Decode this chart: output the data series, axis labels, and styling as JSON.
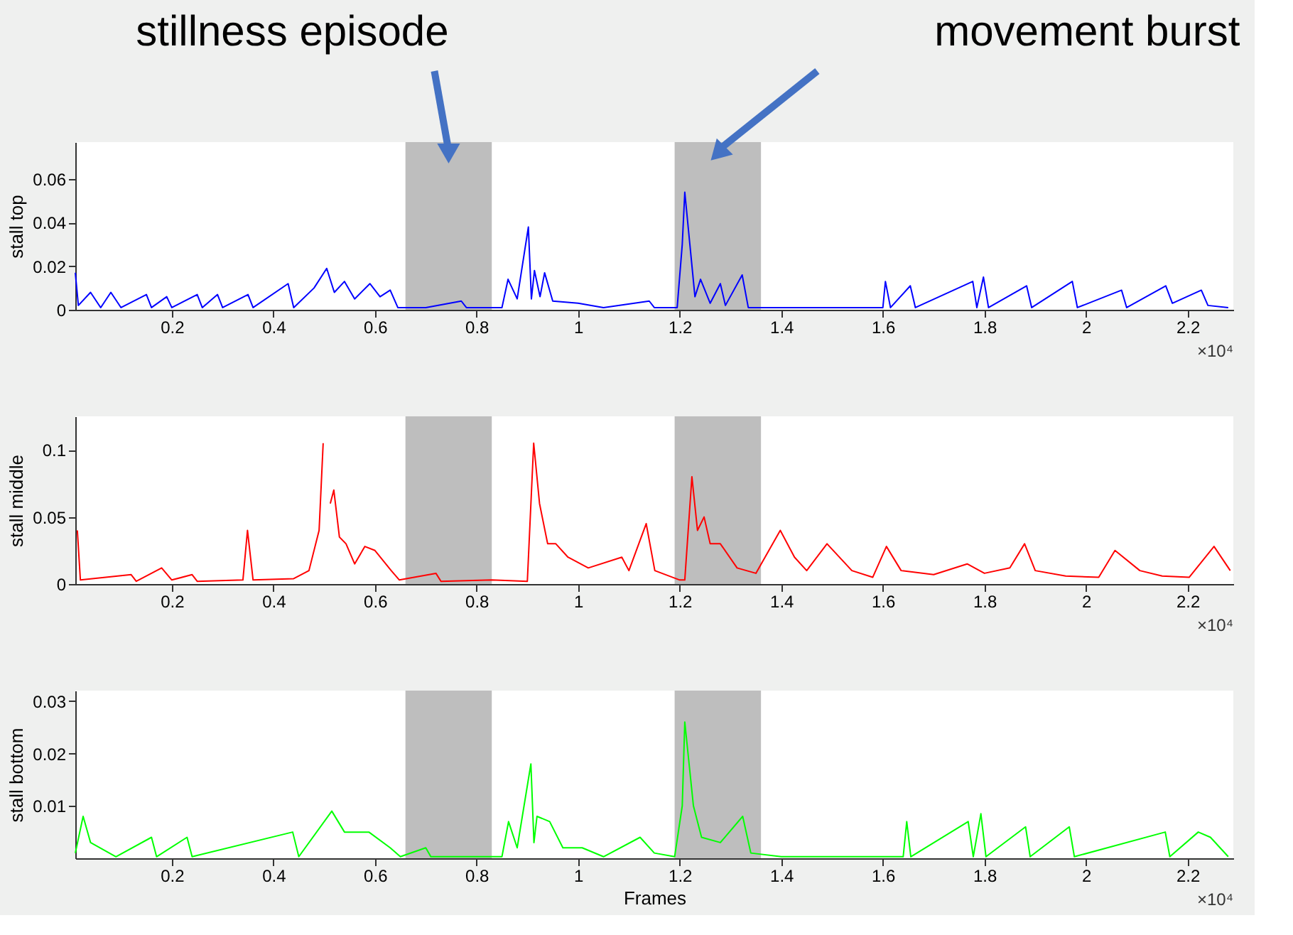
{
  "chart_data": [
    {
      "type": "line",
      "ylabel": "stall top",
      "x": [
        0.01,
        0.016,
        0.04,
        0.06,
        0.08,
        0.1,
        0.15,
        0.16,
        0.19,
        0.2,
        0.25,
        0.26,
        0.29,
        0.3,
        0.35,
        0.36,
        0.429,
        0.44,
        0.48,
        0.505,
        0.52,
        0.54,
        0.56,
        0.59,
        0.61,
        0.63,
        0.645,
        0.7,
        0.77,
        0.78,
        0.85,
        0.862,
        0.88,
        0.902,
        0.908,
        0.914,
        0.925,
        0.934,
        0.95,
        1.0,
        1.05,
        1.14,
        1.15,
        1.195,
        1.205,
        1.21,
        1.22,
        1.23,
        1.241,
        1.26,
        1.28,
        1.29,
        1.323,
        1.335,
        1.4,
        1.6,
        1.605,
        1.615,
        1.654,
        1.664,
        1.777,
        1.785,
        1.798,
        1.808,
        1.883,
        1.893,
        1.973,
        1.983,
        2.07,
        2.08,
        2.157,
        2.17,
        2.227,
        2.24,
        2.28
      ],
      "series": [
        {
          "color": "#0000ff",
          "values": [
            0.017,
            0.002,
            0.008,
            0.001,
            0.008,
            0.001,
            0.007,
            0.001,
            0.006,
            0.001,
            0.007,
            0.001,
            0.007,
            0.001,
            0.007,
            0.001,
            0.012,
            0.001,
            0.01,
            0.019,
            0.008,
            0.013,
            0.005,
            0.012,
            0.006,
            0.009,
            0.001,
            0.001,
            0.004,
            0.001,
            0.001,
            0.014,
            0.005,
            0.038,
            0.005,
            0.018,
            0.006,
            0.017,
            0.004,
            0.003,
            0.001,
            0.004,
            0.001,
            0.001,
            0.03,
            0.054,
            0.03,
            0.006,
            0.014,
            0.003,
            0.012,
            0.002,
            0.016,
            0.001,
            0.001,
            0.001,
            0.013,
            0.001,
            0.011,
            0.001,
            0.013,
            0.001,
            0.015,
            0.001,
            0.011,
            0.001,
            0.013,
            0.001,
            0.009,
            0.001,
            0.011,
            0.003,
            0.009,
            0.002,
            0.001
          ]
        }
      ],
      "xlim": [
        0.01,
        2.29
      ],
      "xticks": [
        0.2,
        0.4,
        0.6,
        0.8,
        1,
        1.2,
        1.4,
        1.6,
        1.8,
        2,
        2.2
      ],
      "ylim": [
        0,
        0.077
      ],
      "yticks": [
        0,
        0.02,
        0.04,
        0.06
      ],
      "bands": [
        {
          "axis": "x",
          "from": 0.66,
          "to": 0.83,
          "color": "#bbbbbb"
        },
        {
          "axis": "x",
          "from": 1.19,
          "to": 1.36,
          "color": "#bbbbbb"
        }
      ],
      "annotations": [
        "stillness episode",
        "movement burst",
        "×10⁴"
      ]
    },
    {
      "type": "line",
      "ylabel": "stall middle",
      "x": [
        0.014,
        0.02,
        0.12,
        0.13,
        0.18,
        0.2,
        0.24,
        0.25,
        0.34,
        0.349,
        0.36,
        0.44,
        0.47,
        0.49,
        0.498,
        0.5045,
        0.512,
        0.519,
        0.53,
        0.543,
        0.56,
        0.58,
        0.6,
        0.632,
        0.648,
        0.72,
        0.73,
        0.83,
        0.9,
        0.9125,
        0.924,
        0.94,
        0.956,
        0.98,
        1.02,
        1.086,
        1.1,
        1.134,
        1.151,
        1.2,
        1.21,
        1.224,
        1.235,
        1.248,
        1.26,
        1.28,
        1.313,
        1.35,
        1.398,
        1.426,
        1.45,
        1.49,
        1.539,
        1.58,
        1.607,
        1.636,
        1.7,
        1.766,
        1.8,
        1.85,
        1.879,
        1.9,
        1.96,
        2.025,
        2.057,
        2.106,
        2.15,
        2.203,
        2.252,
        2.284
      ],
      "series": [
        {
          "color": "#ff0000",
          "values": [
            0.04,
            0.003,
            0.007,
            0.002,
            0.012,
            0.003,
            0.007,
            0.002,
            0.003,
            0.04,
            0.003,
            0.004,
            0.01,
            0.04,
            0.105,
            null,
            0.06,
            0.07,
            0.035,
            0.03,
            0.015,
            0.028,
            0.025,
            0.01,
            0.003,
            0.008,
            0.002,
            0.003,
            0.002,
            0.105,
            0.06,
            0.03,
            0.03,
            0.02,
            0.012,
            0.02,
            0.01,
            0.045,
            0.01,
            0.003,
            0.003,
            0.08,
            0.04,
            0.05,
            0.03,
            0.03,
            0.012,
            0.008,
            0.04,
            0.02,
            0.01,
            0.03,
            0.01,
            0.005,
            0.028,
            0.01,
            0.007,
            0.015,
            0.008,
            0.012,
            0.03,
            0.01,
            0.006,
            0.005,
            0.025,
            0.01,
            0.006,
            0.005,
            0.028,
            0.01
          ]
        }
      ],
      "xlim": [
        0.01,
        2.29
      ],
      "xticks": [
        0.2,
        0.4,
        0.6,
        0.8,
        1,
        1.2,
        1.4,
        1.6,
        1.8,
        2,
        2.2
      ],
      "ylim": [
        0,
        0.125
      ],
      "yticks": [
        0,
        0.05,
        0.1
      ],
      "bands": [
        {
          "axis": "x",
          "from": 0.66,
          "to": 0.83,
          "label": null,
          "color": "#bbbbbb"
        },
        {
          "axis": "x",
          "from": 1.19,
          "to": 1.36,
          "label": null,
          "color": "#bbbbbb"
        }
      ],
      "annotations": [
        "×10⁴"
      ]
    },
    {
      "type": "line",
      "ylabel": "stall bottom",
      "xlabel": "Frames",
      "x": [
        0.01,
        0.0254,
        0.04,
        0.09,
        0.16,
        0.17,
        0.23,
        0.24,
        0.438,
        0.45,
        0.515,
        0.54,
        0.588,
        0.63,
        0.65,
        0.7,
        0.71,
        0.85,
        0.863,
        0.88,
        0.907,
        0.913,
        0.919,
        0.944,
        0.97,
        1.008,
        1.05,
        1.122,
        1.15,
        1.19,
        1.205,
        1.21,
        1.227,
        1.243,
        1.28,
        1.324,
        1.34,
        1.4,
        1.64,
        1.647,
        1.655,
        1.768,
        1.778,
        1.793,
        1.803,
        1.881,
        1.89,
        1.967,
        1.977,
        2.156,
        2.165,
        2.221,
        2.245,
        2.28
      ],
      "series": [
        {
          "color": "#00ff00",
          "values": [
            0.001,
            0.008,
            0.003,
            0.0003,
            0.004,
            0.0003,
            0.004,
            0.0003,
            0.005,
            0.0003,
            0.009,
            0.005,
            0.005,
            0.002,
            0.0003,
            0.002,
            0.0003,
            0.0003,
            0.007,
            0.002,
            0.018,
            0.003,
            0.008,
            0.007,
            0.002,
            0.002,
            0.0003,
            0.004,
            0.001,
            0.0003,
            0.01,
            0.026,
            0.01,
            0.004,
            0.003,
            0.008,
            0.001,
            0.0003,
            0.0003,
            0.007,
            0.0003,
            0.007,
            0.0003,
            0.0085,
            0.0003,
            0.006,
            0.0003,
            0.006,
            0.0003,
            0.005,
            0.0003,
            0.005,
            0.004,
            0.0003
          ]
        }
      ],
      "xlim": [
        0.01,
        2.29
      ],
      "xticks": [
        0.2,
        0.4,
        0.6,
        0.8,
        1,
        1.2,
        1.4,
        1.6,
        1.8,
        2,
        2.2
      ],
      "ylim": [
        0,
        0.032
      ],
      "yticks": [
        0.01,
        0.02,
        0.03
      ],
      "bands": [
        {
          "axis": "x",
          "from": 0.66,
          "to": 0.83,
          "label": null,
          "color": "#bbbbbb"
        },
        {
          "axis": "x",
          "from": 1.19,
          "to": 1.36,
          "label": null,
          "color": "#bbbbbb"
        }
      ],
      "annotations": [
        "×10⁴"
      ]
    }
  ]
}
